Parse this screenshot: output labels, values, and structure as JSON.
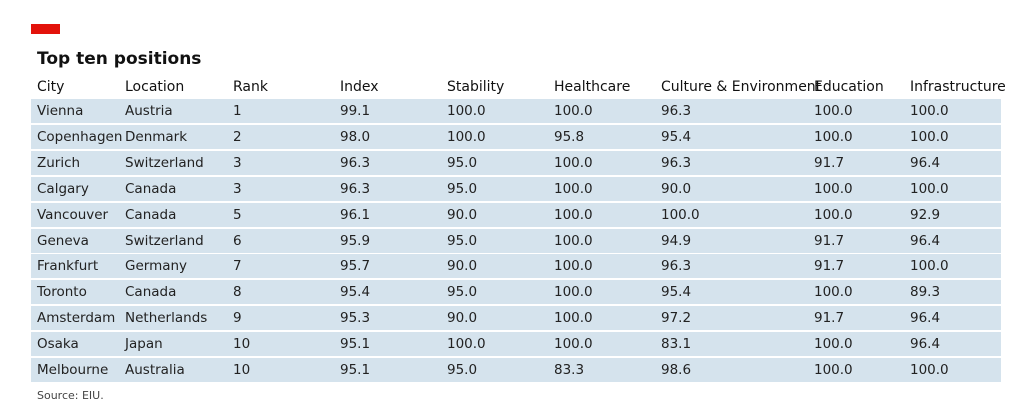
{
  "header": {
    "title": "Top ten positions"
  },
  "table": {
    "columns": [
      "City",
      "Location",
      "Rank",
      "Index",
      "Stability",
      "Healthcare",
      "Culture & Environment",
      "Education",
      "Infrastructure"
    ],
    "rows": [
      [
        "Vienna",
        "Austria",
        "1",
        "99.1",
        "100.0",
        "100.0",
        "96.3",
        "100.0",
        "100.0"
      ],
      [
        "Copenhagen",
        "Denmark",
        "2",
        "98.0",
        "100.0",
        "95.8",
        "95.4",
        "100.0",
        "100.0"
      ],
      [
        "Zurich",
        "Switzerland",
        "3",
        "96.3",
        "95.0",
        "100.0",
        "96.3",
        "91.7",
        "96.4"
      ],
      [
        "Calgary",
        "Canada",
        "3",
        "96.3",
        "95.0",
        "100.0",
        "90.0",
        "100.0",
        "100.0"
      ],
      [
        "Vancouver",
        "Canada",
        "5",
        "96.1",
        "90.0",
        "100.0",
        "100.0",
        "100.0",
        "92.9"
      ],
      [
        "Geneva",
        "Switzerland",
        "6",
        "95.9",
        "95.0",
        "100.0",
        "94.9",
        "91.7",
        "96.4"
      ],
      [
        "Frankfurt",
        "Germany",
        "7",
        "95.7",
        "90.0",
        "100.0",
        "96.3",
        "91.7",
        "100.0"
      ],
      [
        "Toronto",
        "Canada",
        "8",
        "95.4",
        "95.0",
        "100.0",
        "95.4",
        "100.0",
        "89.3"
      ],
      [
        "Amsterdam",
        "Netherlands",
        "9",
        "95.3",
        "90.0",
        "100.0",
        "97.2",
        "91.7",
        "96.4"
      ],
      [
        "Osaka",
        "Japan",
        "10",
        "95.1",
        "100.0",
        "100.0",
        "83.1",
        "100.0",
        "96.4"
      ],
      [
        "Melbourne",
        "Australia",
        "10",
        "95.1",
        "95.0",
        "83.3",
        "98.6",
        "100.0",
        "100.0"
      ]
    ]
  },
  "footer": {
    "source": "Source: EIU."
  }
}
